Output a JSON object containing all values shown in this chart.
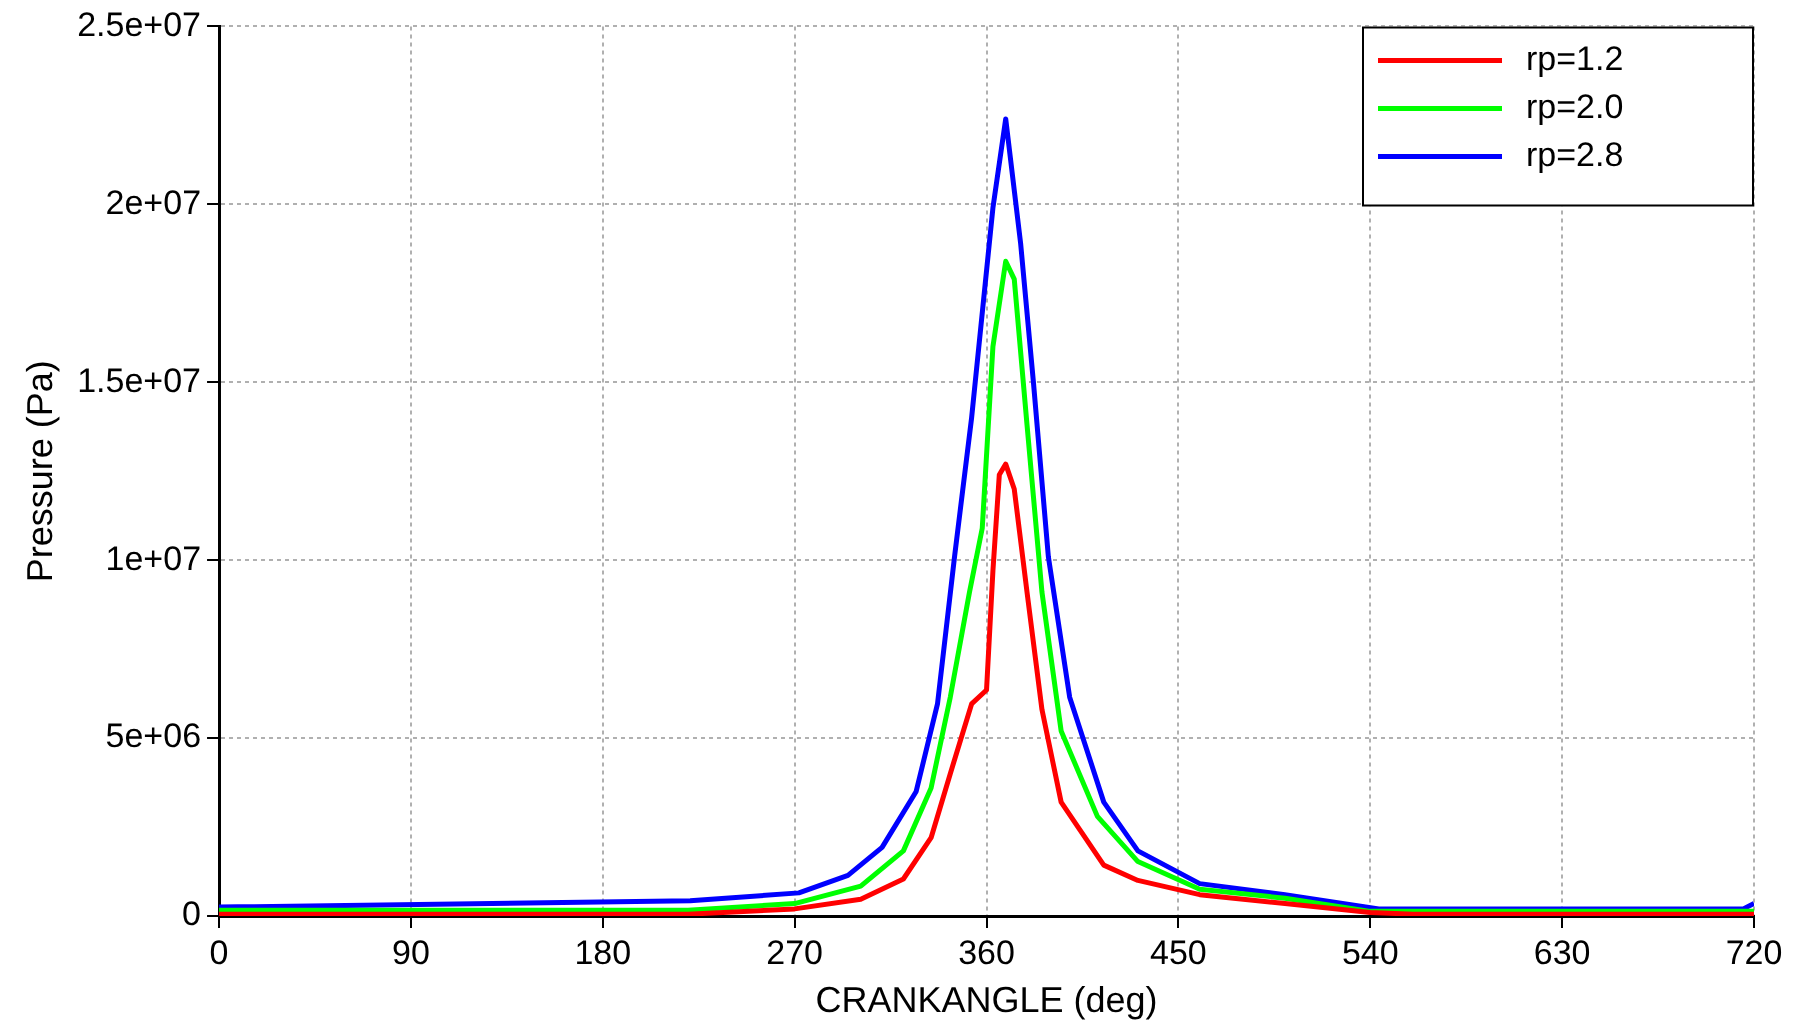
{
  "chart_data": {
    "type": "line",
    "xlabel": "CRANKANGLE (deg)",
    "ylabel": "Pressure (Pa)",
    "xlim": [
      0,
      720
    ],
    "xticks": [
      0,
      90,
      180,
      270,
      360,
      450,
      540,
      630,
      720
    ],
    "ylim": [
      0,
      25000000
    ],
    "yticks": [
      {
        "value": 0,
        "label": "0"
      },
      {
        "value": 5000000,
        "label": "5e+06"
      },
      {
        "value": 10000000,
        "label": "1e+07"
      },
      {
        "value": 15000000,
        "label": "1.5e+07"
      },
      {
        "value": 20000000,
        "label": "2e+07"
      },
      {
        "value": 25000000,
        "label": "2.5e+07"
      }
    ],
    "grid": true,
    "legend": "top right",
    "marker": "none",
    "line_style": "solid",
    "series": [
      {
        "name": "rp=1.2",
        "color": "#ff0000",
        "x": [
          0,
          220,
          270,
          301,
          321,
          334,
          343,
          353,
          360,
          363,
          366,
          369,
          373,
          379,
          386,
          395,
          415,
          431,
          460,
          500,
          540,
          560,
          720
        ],
        "values": [
          50000,
          50000,
          200000,
          470000,
          1040000,
          2200000,
          4000000,
          5960000,
          6350000,
          9700000,
          12400000,
          12700000,
          12000000,
          9100000,
          5800000,
          3200000,
          1430000,
          1000000,
          600000,
          350000,
          100000,
          50000,
          50000
        ]
      },
      {
        "name": "rp=2.0",
        "color": "#00ff00",
        "x": [
          0,
          220,
          270,
          301,
          321,
          334,
          343,
          352,
          358,
          363,
          369,
          373,
          379,
          386,
          395,
          412,
          431,
          460,
          500,
          540,
          560,
          720
        ],
        "values": [
          160000,
          160000,
          350000,
          840000,
          1830000,
          3600000,
          6150000,
          9100000,
          10900000,
          16000000,
          18400000,
          17900000,
          13800000,
          9100000,
          5200000,
          2800000,
          1530000,
          750000,
          500000,
          130000,
          130000,
          130000
        ]
      },
      {
        "name": "rp=2.8",
        "color": "#0000ff",
        "x": [
          0,
          221,
          272,
          295,
          311,
          327,
          337,
          345,
          353,
          363,
          369,
          376,
          382,
          389,
          399,
          415,
          431,
          460,
          500,
          544,
          550,
          715,
          720
        ],
        "values": [
          250000,
          430000,
          650000,
          1140000,
          1930000,
          3500000,
          5960000,
          10100000,
          14000000,
          19900000,
          22400000,
          18900000,
          15000000,
          10100000,
          6150000,
          3200000,
          1830000,
          910000,
          600000,
          200000,
          200000,
          200000,
          350000
        ]
      }
    ]
  }
}
